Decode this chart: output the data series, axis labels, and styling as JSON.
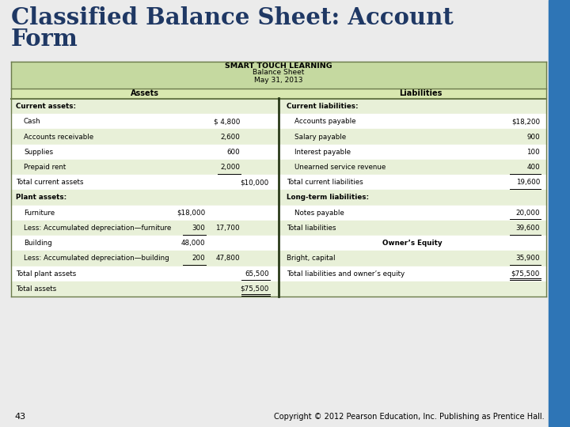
{
  "title_line1": "Classified Balance Sheet: Account",
  "title_line2": "Form",
  "title_color": "#1F3864",
  "slide_bg": "#EBEBEB",
  "right_bar_color": "#2E75B6",
  "table_header_bg": "#C5D9A0",
  "table_col_header_bg": "#D9E8B0",
  "table_row_bg1": "#FFFFFF",
  "table_row_bg2": "#E8F0D8",
  "border_color": "#6B7B4B",
  "company_name": "SMART TOUCH LEARNING",
  "sheet_type": "Balance Sheet",
  "date": "May 31, 2013",
  "assets_header": "Assets",
  "liabilities_header": "Liabilities",
  "footer_num": "43",
  "footer_text": "Copyright © 2012 Pearson Education, Inc. Publishing as Prentice Hall.",
  "assets_rows": [
    {
      "label": "Current assets:",
      "col1": "",
      "col2": "",
      "col3": "",
      "bold": true,
      "indent": 0
    },
    {
      "label": "Cash",
      "col1": "",
      "col2": "$ 4,800",
      "col3": "",
      "bold": false,
      "indent": 1
    },
    {
      "label": "Accounts receivable",
      "col1": "",
      "col2": "2,600",
      "col3": "",
      "bold": false,
      "indent": 1
    },
    {
      "label": "Supplies",
      "col1": "",
      "col2": "600",
      "col3": "",
      "bold": false,
      "indent": 1
    },
    {
      "label": "Prepaid rent",
      "col1": "",
      "col2": "2,000",
      "col3": "",
      "bold": false,
      "indent": 1,
      "underline_col2": true
    },
    {
      "label": "Total current assets",
      "col1": "",
      "col2": "",
      "col3": "$10,000",
      "bold": false,
      "indent": 0
    },
    {
      "label": "Plant assets:",
      "col1": "",
      "col2": "",
      "col3": "",
      "bold": true,
      "indent": 0
    },
    {
      "label": "Furniture",
      "col1": "$18,000",
      "col2": "",
      "col3": "",
      "bold": false,
      "indent": 1
    },
    {
      "label": "Less: Accumulated depreciation—furniture",
      "col1": "300",
      "col2": "17,700",
      "col3": "",
      "bold": false,
      "indent": 1,
      "underline_col1": true
    },
    {
      "label": "Building",
      "col1": "48,000",
      "col2": "",
      "col3": "",
      "bold": false,
      "indent": 1
    },
    {
      "label": "Less: Accumulated depreciation—building",
      "col1": "200",
      "col2": "47,800",
      "col3": "",
      "bold": false,
      "indent": 1,
      "underline_col1": true
    },
    {
      "label": "Total plant assets",
      "col1": "",
      "col2": "",
      "col3": "65,500",
      "bold": false,
      "indent": 0,
      "underline_col3": true
    },
    {
      "label": "Total assets",
      "col1": "",
      "col2": "",
      "col3": "$75,500",
      "bold": false,
      "indent": 0,
      "double_underline": true
    }
  ],
  "liabilities_rows": [
    {
      "label": "Current liabilities:",
      "val": "",
      "bold": true,
      "indent": 0
    },
    {
      "label": "Accounts payable",
      "val": "$18,200",
      "bold": false,
      "indent": 1
    },
    {
      "label": "Salary payable",
      "val": "900",
      "bold": false,
      "indent": 1
    },
    {
      "label": "Interest payable",
      "val": "100",
      "bold": false,
      "indent": 1
    },
    {
      "label": "Unearned service revenue",
      "val": "400",
      "bold": false,
      "indent": 1,
      "underline_val": true
    },
    {
      "label": "Total current liabilities",
      "val": "19,600",
      "bold": false,
      "indent": 0,
      "underline_val": true
    },
    {
      "label": "Long-term liabilities:",
      "val": "",
      "bold": true,
      "indent": 0
    },
    {
      "label": "Notes payable",
      "val": "20,000",
      "bold": false,
      "indent": 1,
      "underline_val": true
    },
    {
      "label": "Total liabilities",
      "val": "39,600",
      "bold": false,
      "indent": 0,
      "underline_val": true
    },
    {
      "label": "Owner’s Equity",
      "val": "",
      "bold": true,
      "indent": 0,
      "center_label": true
    },
    {
      "label": "Bright, capital",
      "val": "35,900",
      "bold": false,
      "indent": 0,
      "underline_val": true
    },
    {
      "label": "Total liabilities and owner’s equity",
      "val": "$75,500",
      "bold": false,
      "indent": 0,
      "double_underline": true
    }
  ]
}
